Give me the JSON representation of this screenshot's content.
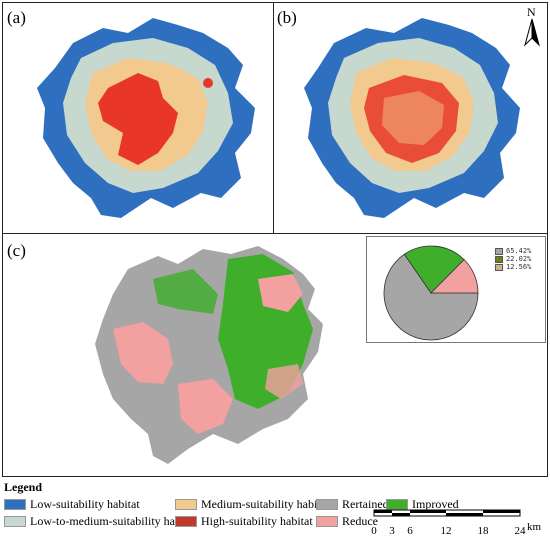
{
  "panels": {
    "a_label": "(a)",
    "b_label": "(b)",
    "c_label": "(c)"
  },
  "north_label": "N",
  "pie": {
    "type": "pie",
    "slices": [
      {
        "label": "65.42%",
        "value": 65.42,
        "color": "#a6a6a6"
      },
      {
        "label": "22.02%",
        "value": 22.02,
        "color": "#3fae2a"
      },
      {
        "label": "12.56%",
        "value": 12.56,
        "color": "#f3a0a0"
      }
    ]
  },
  "legend": {
    "title": "Legend",
    "items": [
      {
        "label": "Low-suitability habitat",
        "color": "#2f6fbf"
      },
      {
        "label": "Low-to-medium-suitability habitat",
        "color": "#c7d8cf"
      },
      {
        "label": "Medium-suitability habitat",
        "color": "#f2c98f"
      },
      {
        "label": "High-suitability habitat",
        "color": "#c0392b"
      },
      {
        "label": "Rertained",
        "color": "#a6a6a6"
      },
      {
        "label": "Improved",
        "color": "#3fae2a"
      },
      {
        "label": "Reduce",
        "color": "#f3a0a0"
      }
    ]
  },
  "scale": {
    "ticks": [
      "0",
      "3",
      "6",
      "12",
      "18",
      "24"
    ],
    "unit": "km"
  },
  "colors": {
    "low": "#2f6fbf",
    "low_medium": "#c7d8cf",
    "medium": "#f2c98f",
    "high": "#e8372a",
    "retained": "#a6a6a6",
    "improved": "#3fae2a",
    "reduce": "#f3a0a0"
  }
}
